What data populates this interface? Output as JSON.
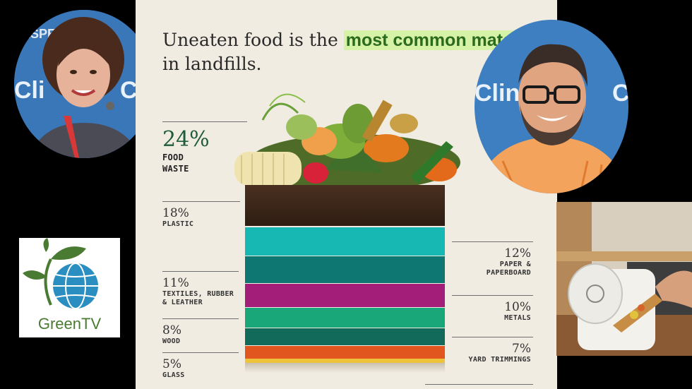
{
  "headline": {
    "before": "Uneaten food is the ",
    "highlight": "most common material",
    "after": " in landfills."
  },
  "categories": [
    {
      "percent": "24%",
      "label_line1": "FOOD",
      "label_line2": "WASTE",
      "value": 24,
      "color": "#3b2616"
    },
    {
      "percent": "18%",
      "label_line1": "PLASTIC",
      "label_line2": "",
      "value": 18,
      "color": "#17b8b4"
    },
    {
      "percent": "12%",
      "label_line1": "PAPER &",
      "label_line2": "PAPERBOARD",
      "value": 12,
      "color": "#0f7772"
    },
    {
      "percent": "11%",
      "label_line1": "TEXTILES, RUBBER",
      "label_line2": "& LEATHER",
      "value": 11,
      "color": "#a31e78"
    },
    {
      "percent": "10%",
      "label_line1": "METALS",
      "label_line2": "",
      "value": 10,
      "color": "#19a77a"
    },
    {
      "percent": "8%",
      "label_line1": "WOOD",
      "label_line2": "",
      "value": 8,
      "color": "#116a5a"
    },
    {
      "percent": "7%",
      "label_line1": "YARD TRIMMINGS",
      "label_line2": "",
      "value": 7,
      "color": "#e0561e"
    },
    {
      "percent": "5%",
      "label_line1": "GLASS",
      "label_line2": "",
      "value": 5,
      "color": "#ecc33a"
    }
  ],
  "logo": {
    "text": "GreenTV",
    "icon": "leaf-globe-icon"
  },
  "guests": {
    "left_alt": "woman-portrait",
    "right_alt": "man-portrait"
  },
  "kitchen_photo": "compost-bin-photo"
}
